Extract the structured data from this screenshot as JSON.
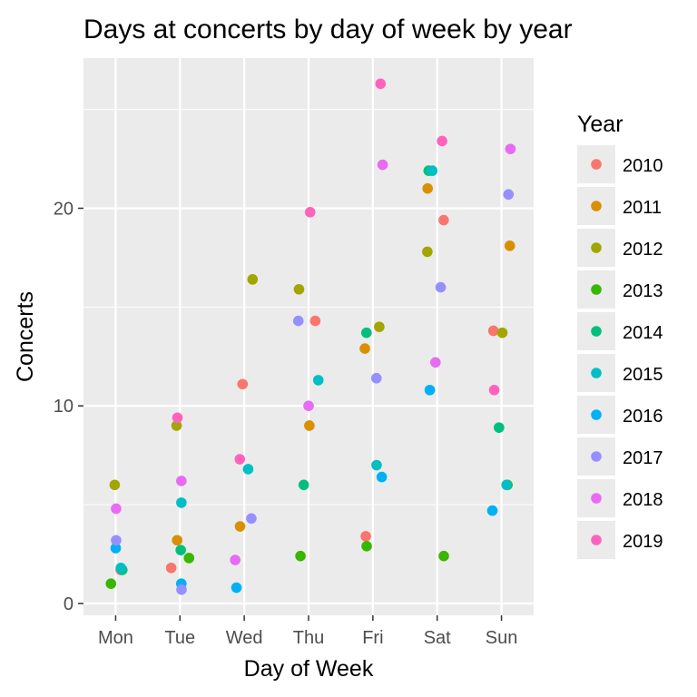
{
  "chart_data": {
    "type": "scatter",
    "title": "Days at concerts by day of week by year",
    "xlabel": "Day of Week",
    "ylabel": "Concerts",
    "categories": [
      "Mon",
      "Tue",
      "Wed",
      "Thu",
      "Fri",
      "Sat",
      "Sun"
    ],
    "yticks": [
      0,
      10,
      20
    ],
    "ylim": [
      -0.6,
      27.6
    ],
    "grid": true,
    "legend": {
      "title": "Year",
      "placement": "right"
    },
    "series": [
      {
        "name": "2010",
        "color": "#F8766D",
        "points": [
          {
            "x": "Mon",
            "y": 1.7
          },
          {
            "x": "Tue",
            "y": 1.8
          },
          {
            "x": "Wed",
            "y": 11.1
          },
          {
            "x": "Thu",
            "y": 14.3
          },
          {
            "x": "Fri",
            "y": 3.4
          },
          {
            "x": "Sat",
            "y": 19.4
          },
          {
            "x": "Sun",
            "y": 13.8
          }
        ]
      },
      {
        "name": "2011",
        "color": "#D89000",
        "points": [
          {
            "x": "Tue",
            "y": 3.2
          },
          {
            "x": "Wed",
            "y": 3.9
          },
          {
            "x": "Thu",
            "y": 9.0
          },
          {
            "x": "Fri",
            "y": 12.9
          },
          {
            "x": "Sat",
            "y": 21.0
          },
          {
            "x": "Sun",
            "y": 18.1
          }
        ]
      },
      {
        "name": "2012",
        "color": "#A3A500",
        "points": [
          {
            "x": "Mon",
            "y": 6.0
          },
          {
            "x": "Tue",
            "y": 9.0
          },
          {
            "x": "Wed",
            "y": 16.4
          },
          {
            "x": "Thu",
            "y": 15.9
          },
          {
            "x": "Fri",
            "y": 14.0
          },
          {
            "x": "Sat",
            "y": 17.8
          },
          {
            "x": "Sun",
            "y": 13.7
          }
        ]
      },
      {
        "name": "2013",
        "color": "#39B600",
        "points": [
          {
            "x": "Mon",
            "y": 1.0
          },
          {
            "x": "Tue",
            "y": 2.3
          },
          {
            "x": "Thu",
            "y": 2.4
          },
          {
            "x": "Fri",
            "y": 2.9
          },
          {
            "x": "Sat",
            "y": 2.4
          },
          {
            "x": "Sun",
            "y": 6.0
          }
        ]
      },
      {
        "name": "2014",
        "color": "#00BF7D",
        "points": [
          {
            "x": "Mon",
            "y": 1.7
          },
          {
            "x": "Tue",
            "y": 2.7
          },
          {
            "x": "Thu",
            "y": 6.0
          },
          {
            "x": "Fri",
            "y": 13.7
          },
          {
            "x": "Sat",
            "y": 21.9
          },
          {
            "x": "Sun",
            "y": 8.9
          }
        ]
      },
      {
        "name": "2015",
        "color": "#00BFC4",
        "points": [
          {
            "x": "Mon",
            "y": 1.8
          },
          {
            "x": "Tue",
            "y": 5.1
          },
          {
            "x": "Wed",
            "y": 6.8
          },
          {
            "x": "Thu",
            "y": 11.3
          },
          {
            "x": "Fri",
            "y": 7.0
          },
          {
            "x": "Sat",
            "y": 21.9
          },
          {
            "x": "Sun",
            "y": 6.0
          }
        ]
      },
      {
        "name": "2016",
        "color": "#00B0F6",
        "points": [
          {
            "x": "Mon",
            "y": 2.8
          },
          {
            "x": "Tue",
            "y": 1.0
          },
          {
            "x": "Wed",
            "y": 0.8
          },
          {
            "x": "Fri",
            "y": 6.4
          },
          {
            "x": "Sat",
            "y": 10.8
          },
          {
            "x": "Sun",
            "y": 4.7
          }
        ]
      },
      {
        "name": "2017",
        "color": "#9590FF",
        "points": [
          {
            "x": "Mon",
            "y": 3.2
          },
          {
            "x": "Tue",
            "y": 0.7
          },
          {
            "x": "Wed",
            "y": 4.3
          },
          {
            "x": "Thu",
            "y": 14.3
          },
          {
            "x": "Fri",
            "y": 11.4
          },
          {
            "x": "Sat",
            "y": 16.0
          },
          {
            "x": "Sun",
            "y": 20.7
          }
        ]
      },
      {
        "name": "2018",
        "color": "#E76BF3",
        "points": [
          {
            "x": "Mon",
            "y": 4.8
          },
          {
            "x": "Tue",
            "y": 6.2
          },
          {
            "x": "Wed",
            "y": 2.2
          },
          {
            "x": "Thu",
            "y": 10.0
          },
          {
            "x": "Fri",
            "y": 22.2
          },
          {
            "x": "Sat",
            "y": 12.2
          },
          {
            "x": "Sun",
            "y": 23.0
          }
        ]
      },
      {
        "name": "2019",
        "color": "#FF62BC",
        "points": [
          {
            "x": "Tue",
            "y": 9.4
          },
          {
            "x": "Wed",
            "y": 7.3
          },
          {
            "x": "Thu",
            "y": 19.8
          },
          {
            "x": "Fri",
            "y": 26.3
          },
          {
            "x": "Sat",
            "y": 23.4
          },
          {
            "x": "Sun",
            "y": 10.8
          }
        ]
      }
    ]
  }
}
